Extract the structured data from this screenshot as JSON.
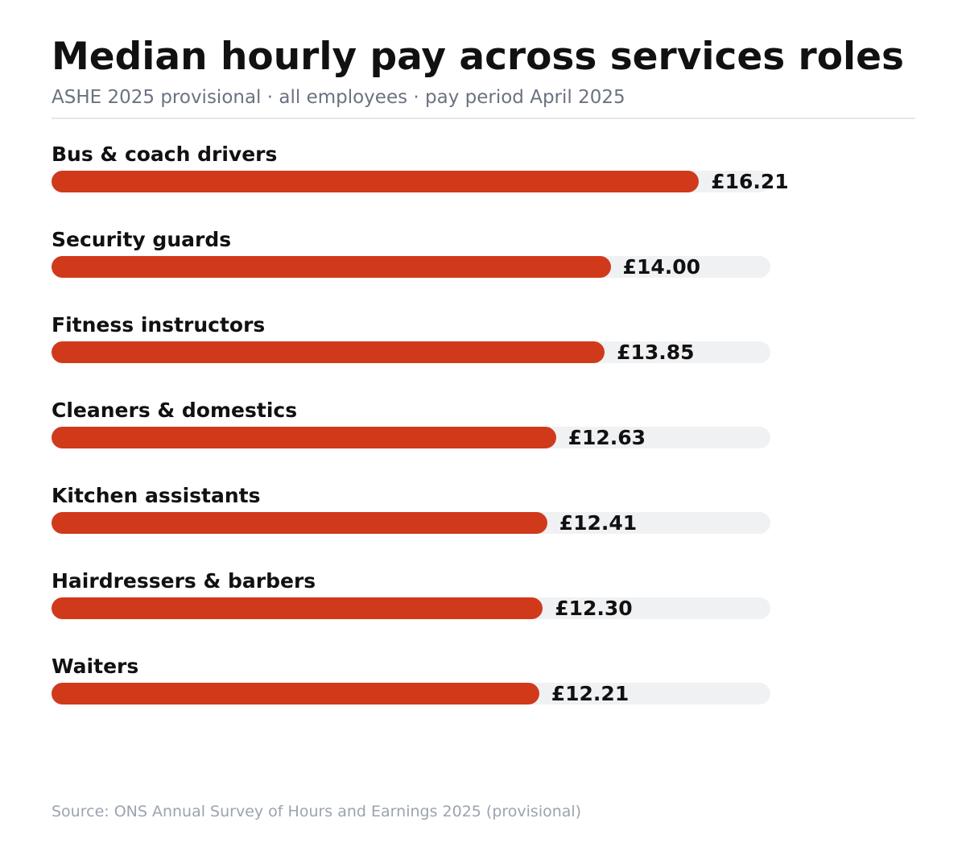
{
  "title": "Median hourly pay across services roles",
  "subtitle": "ASHE 2025 provisional · all employees · pay period April 2025",
  "source": "Source: ONS Annual Survey of Hours and Earnings 2025 (provisional)",
  "chart_data": {
    "type": "bar",
    "orientation": "horizontal",
    "title": "Median hourly pay across services roles",
    "subtitle": "ASHE 2025 provisional · all employees · pay period April 2025",
    "categories": [
      "Bus & coach drivers",
      "Security guards",
      "Fitness instructors",
      "Cleaners & domestics",
      "Kitchen assistants",
      "Hairdressers & barbers",
      "Waiters"
    ],
    "values": [
      16.21,
      14.0,
      13.85,
      12.63,
      12.41,
      12.3,
      12.21
    ],
    "value_labels": [
      "£16.21",
      "£14.00",
      "£13.85",
      "£12.63",
      "£12.41",
      "£12.30",
      "£12.21"
    ],
    "unit": "£ per hour",
    "xlim": [
      0,
      18
    ],
    "grid": false,
    "legend": "none",
    "colors": {
      "bar": "#d03a1b",
      "track": "#f0f1f3"
    }
  }
}
